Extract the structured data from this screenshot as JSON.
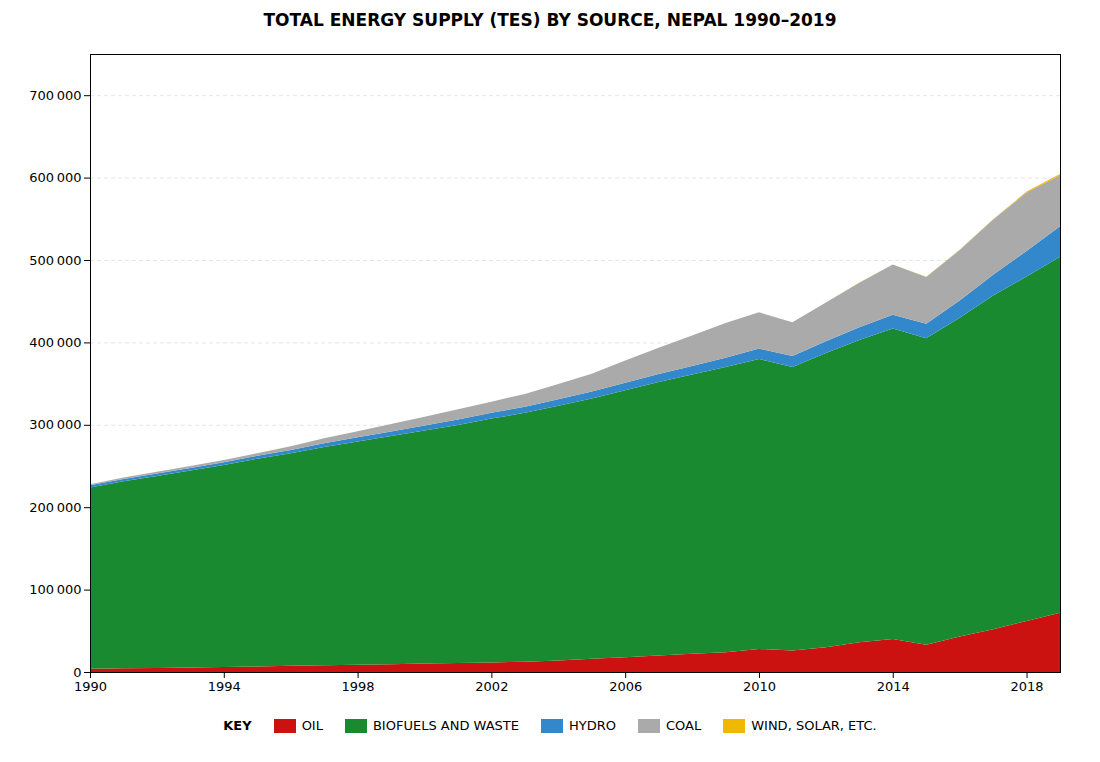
{
  "chart_data": {
    "type": "area",
    "stacked": true,
    "title": "TOTAL ENERGY SUPPLY (TES) BY SOURCE, NEPAL 1990–2019",
    "x": [
      1990,
      1991,
      1992,
      1993,
      1994,
      1995,
      1996,
      1997,
      1998,
      1999,
      2000,
      2001,
      2002,
      2003,
      2004,
      2005,
      2006,
      2007,
      2008,
      2009,
      2010,
      2011,
      2012,
      2013,
      2014,
      2015,
      2016,
      2017,
      2018,
      2019
    ],
    "series": [
      {
        "name": "OIL",
        "color": "#cc1111",
        "values": [
          4000,
          4500,
          5000,
          5500,
          6200,
          6800,
          7500,
          8200,
          8800,
          9500,
          10200,
          10800,
          11500,
          12500,
          14000,
          16000,
          18000,
          20000,
          22000,
          24000,
          28000,
          26000,
          30000,
          36000,
          40000,
          33000,
          43000,
          52000,
          62000,
          72000
        ]
      },
      {
        "name": "BIOFUELS AND WASTE",
        "color": "#1a8a30",
        "values": [
          220000,
          227000,
          233000,
          239000,
          245000,
          252000,
          258000,
          265000,
          271000,
          277000,
          283000,
          289000,
          296000,
          302000,
          309000,
          316000,
          324000,
          332000,
          339000,
          346000,
          352000,
          344000,
          357000,
          367000,
          377000,
          372000,
          387000,
          405000,
          418000,
          432000
        ]
      },
      {
        "name": "HYDRO",
        "color": "#3388cc",
        "values": [
          2500,
          2700,
          2900,
          3100,
          3300,
          3600,
          4000,
          4500,
          5000,
          5500,
          6000,
          6500,
          7000,
          7500,
          8000,
          8500,
          9000,
          9500,
          10500,
          11500,
          12500,
          13500,
          14500,
          15500,
          16500,
          17500,
          21000,
          25000,
          31000,
          37000
        ]
      },
      {
        "name": "COAL",
        "color": "#aaaaaa",
        "values": [
          1500,
          1800,
          2000,
          2300,
          2700,
          3200,
          4500,
          6000,
          7500,
          9000,
          10500,
          12500,
          13500,
          15500,
          18500,
          21500,
          27000,
          32000,
          37000,
          42000,
          44000,
          41000,
          47000,
          54000,
          61000,
          57000,
          61000,
          67000,
          71000,
          62000
        ]
      },
      {
        "name": "WIND, SOLAR, ETC.",
        "color": "#f0b800",
        "values": [
          0,
          0,
          0,
          0,
          0,
          0,
          0,
          0,
          0,
          0,
          0,
          0,
          0,
          0,
          0,
          0,
          0,
          0,
          0,
          0,
          0,
          0,
          0,
          50,
          100,
          200,
          350,
          600,
          1000,
          1500
        ]
      }
    ],
    "xlim": [
      1990,
      2019
    ],
    "xticks": [
      1990,
      1994,
      1998,
      2002,
      2006,
      2010,
      2014,
      2018
    ],
    "ylim": [
      0,
      750000
    ],
    "yticks": [
      0,
      {
        "value": 100000,
        "label": "100 000"
      },
      {
        "value": 200000,
        "label": "200 000"
      },
      {
        "value": 300000,
        "label": "300 000"
      },
      {
        "value": 400000,
        "label": "400 000"
      },
      {
        "value": 500000,
        "label": "500 000"
      },
      {
        "value": 600000,
        "label": "600 000"
      },
      {
        "value": 700000,
        "label": "700 000"
      }
    ],
    "grid": "y",
    "legend": "bottom",
    "legend_title": "KEY"
  }
}
